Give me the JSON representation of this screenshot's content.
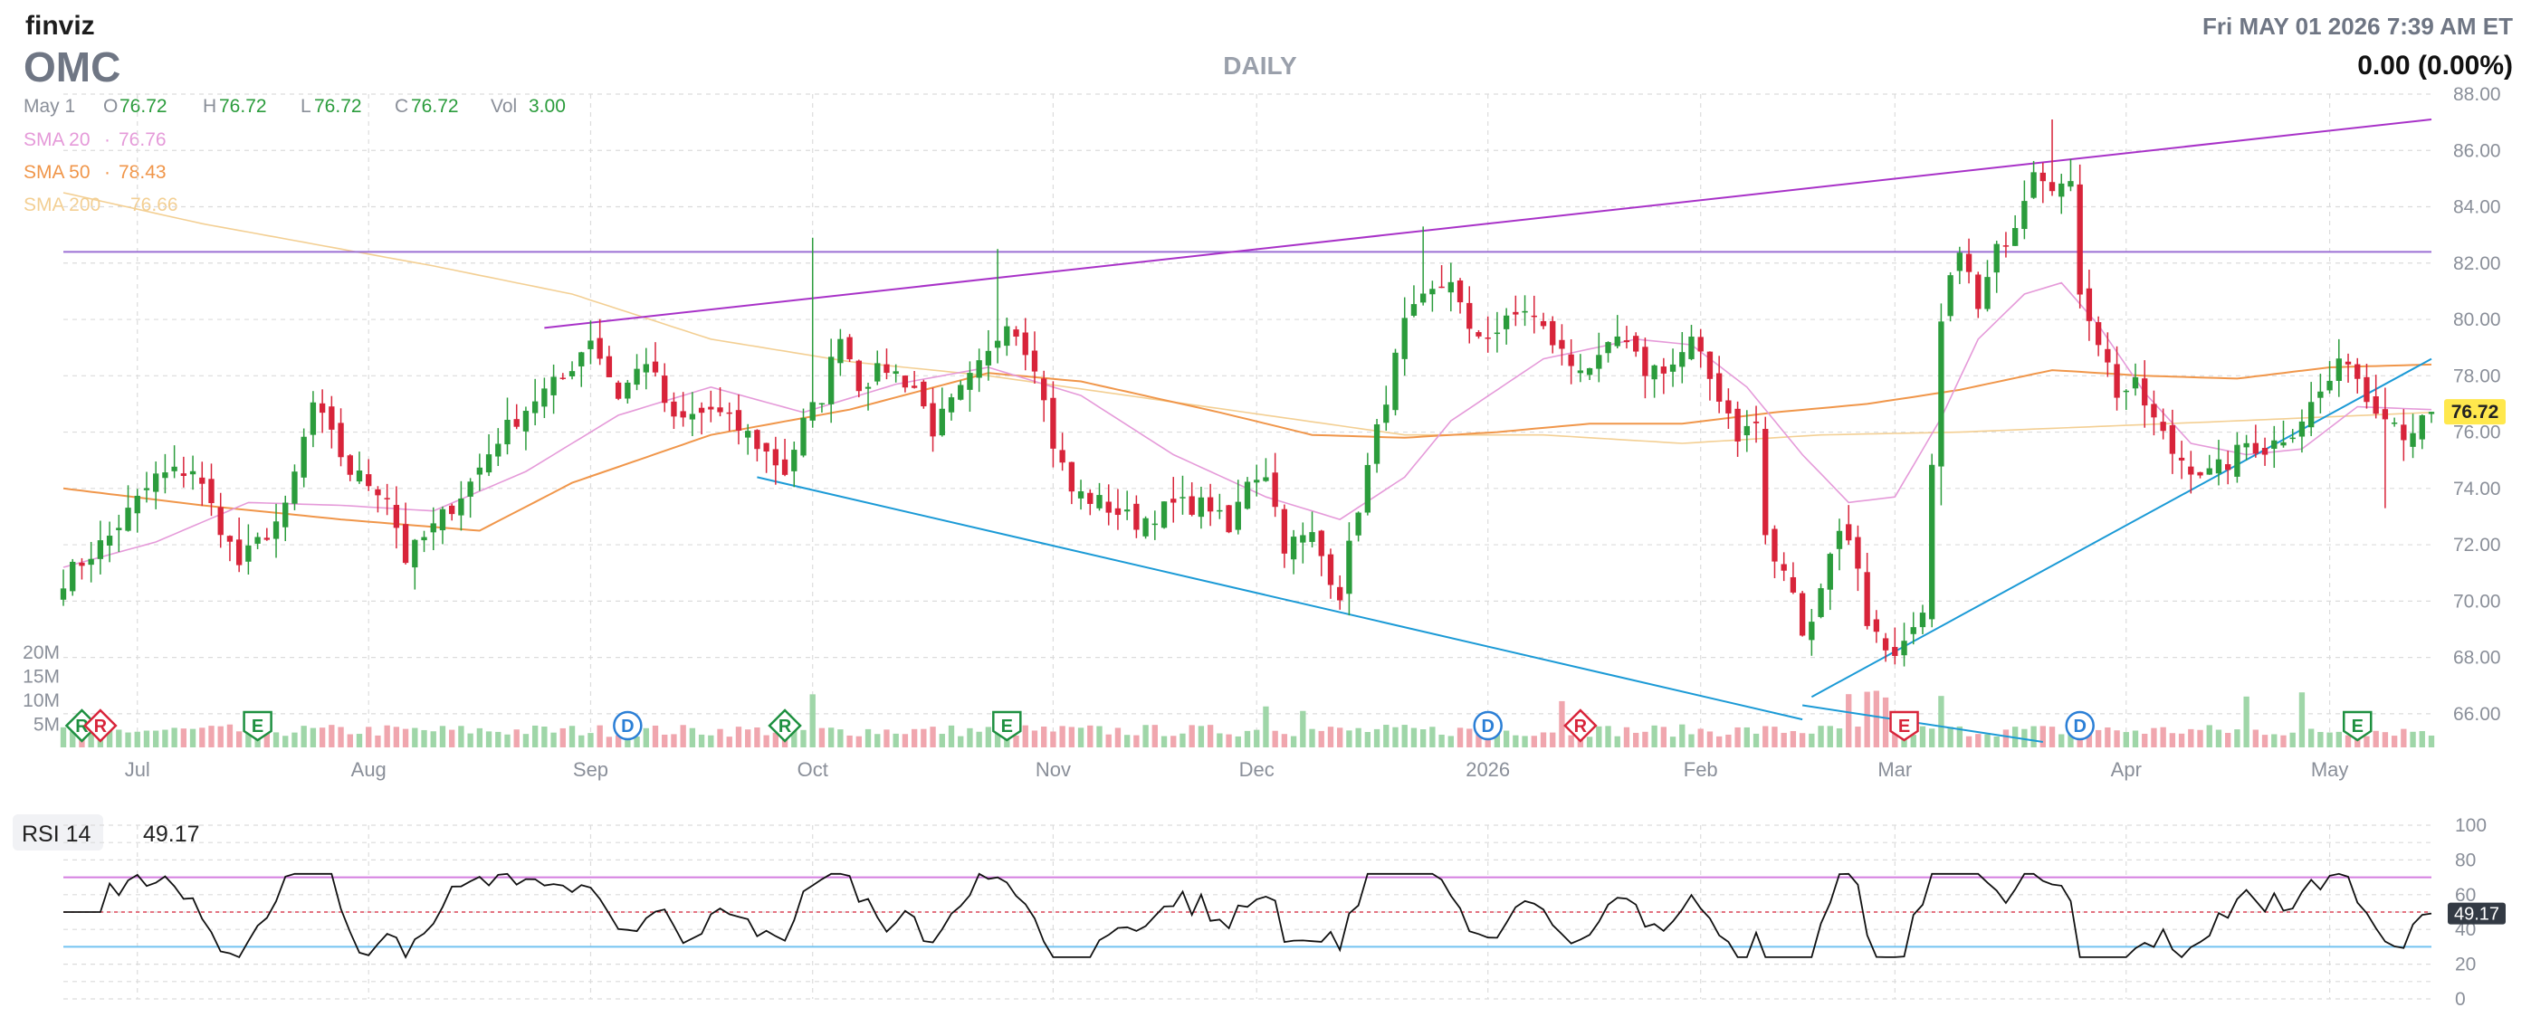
{
  "brand": "finviz",
  "ticker": "OMC",
  "timeframe": "DAILY",
  "datetime": "Fri MAY 01 2026 7:39 AM ET",
  "change": "0.00 (0.00%)",
  "ohlc": {
    "date": "May 1",
    "o_label": "O",
    "o": "76.72",
    "h_label": "H",
    "h": "76.72",
    "l_label": "L",
    "l": "76.72",
    "c_label": "C",
    "c": "76.72",
    "vol_label": "Vol",
    "vol": "3.00"
  },
  "sma": [
    {
      "label": "SMA 20",
      "sep": "·",
      "value": "76.76",
      "color": "#e59ad9"
    },
    {
      "label": "SMA 50",
      "sep": "·",
      "value": "78.43",
      "color": "#f0964a"
    },
    {
      "label": "SMA 200",
      "sep": "·",
      "value": "76.66",
      "color": "#f3cf93"
    }
  ],
  "price_tag": "76.72",
  "rsi": {
    "label": "RSI 14",
    "value": "49.17",
    "tag": "49.17",
    "ticks": [
      "100",
      "80",
      "60",
      "40",
      "20",
      "0"
    ]
  },
  "volume_ticks": [
    "20M",
    "15M",
    "10M",
    "5M"
  ],
  "markers": [
    {
      "type": "R",
      "shape": "diamond",
      "idx": 2
    },
    {
      "type": "R",
      "shape": "diamond",
      "idx": 4
    },
    {
      "type": "E",
      "shape": "pentagon",
      "idx": 21
    },
    {
      "type": "D",
      "shape": "circle",
      "idx": 61
    },
    {
      "type": "R",
      "shape": "diamond",
      "idx": 78
    },
    {
      "type": "E",
      "shape": "pentagon",
      "idx": 102
    },
    {
      "type": "D",
      "shape": "circle",
      "idx": 154
    },
    {
      "type": "R",
      "shape": "diamond",
      "idx": 164
    },
    {
      "type": "E",
      "shape": "pentagon",
      "idx": 199
    },
    {
      "type": "D",
      "shape": "circle",
      "idx": 218
    },
    {
      "type": "E",
      "shape": "pentagon",
      "idx": 248
    }
  ],
  "colors": {
    "up": "#2b9c3c",
    "down": "#d8243a",
    "vol_up": "#9fd6a8",
    "vol_down": "#f0a6ae",
    "trend_purple": "#a832c8",
    "trend_blue": "#1b9ad6",
    "rsi_high": "#d47ee0",
    "rsi_low": "#74c3f0",
    "price_tag_bg": "#ffe84d"
  },
  "chart_data": {
    "type": "candlestick",
    "bars_per_month": 21,
    "x_labels": [
      {
        "label": "Jul",
        "idx": 8
      },
      {
        "label": "Aug",
        "idx": 33
      },
      {
        "label": "Sep",
        "idx": 57
      },
      {
        "label": "Oct",
        "idx": 81
      },
      {
        "label": "Nov",
        "idx": 107
      },
      {
        "label": "Dec",
        "idx": 129
      },
      {
        "label": "2026",
        "idx": 154
      },
      {
        "label": "Feb",
        "idx": 177
      },
      {
        "label": "Mar",
        "idx": 198
      },
      {
        "label": "Apr",
        "idx": 223
      },
      {
        "label": "May",
        "idx": 245
      }
    ],
    "y_axis": {
      "min": 65,
      "max": 88,
      "ticks": [
        66,
        68,
        70,
        72,
        74,
        76,
        78,
        80,
        82,
        84,
        86,
        88
      ]
    },
    "close_path": [
      [
        0,
        70.8
      ],
      [
        5,
        72.3
      ],
      [
        10,
        74.4
      ],
      [
        14,
        74.7
      ],
      [
        19,
        71.3
      ],
      [
        24,
        73.2
      ],
      [
        27,
        77.0
      ],
      [
        31,
        74.6
      ],
      [
        35,
        73.8
      ],
      [
        37,
        71.5
      ],
      [
        40,
        72.6
      ],
      [
        44,
        74.2
      ],
      [
        47,
        75.8
      ],
      [
        51,
        77.2
      ],
      [
        54,
        77.9
      ],
      [
        57,
        79.4
      ],
      [
        60,
        77.3
      ],
      [
        63,
        78.6
      ],
      [
        66,
        76.3
      ],
      [
        70,
        76.8
      ],
      [
        74,
        75.9
      ],
      [
        78,
        74.6
      ],
      [
        80,
        76.3
      ],
      [
        82,
        77.3
      ],
      [
        84,
        79.6
      ],
      [
        86,
        77.7
      ],
      [
        89,
        78.3
      ],
      [
        92,
        77.6
      ],
      [
        94,
        76.1
      ],
      [
        97,
        77.4
      ],
      [
        100,
        78.7
      ],
      [
        102,
        80.1
      ],
      [
        105,
        78.5
      ],
      [
        107,
        75.6
      ],
      [
        109,
        73.9
      ],
      [
        112,
        73.5
      ],
      [
        116,
        72.8
      ],
      [
        120,
        73.4
      ],
      [
        124,
        73.4
      ],
      [
        126,
        72.4
      ],
      [
        128,
        74.4
      ],
      [
        130,
        74.6
      ],
      [
        132,
        72.0
      ],
      [
        135,
        72.3
      ],
      [
        137,
        70.9
      ],
      [
        138,
        70.3
      ],
      [
        140,
        73.4
      ],
      [
        143,
        77.3
      ],
      [
        145,
        79.8
      ],
      [
        147,
        80.6
      ],
      [
        150,
        81.5
      ],
      [
        152,
        79.4
      ],
      [
        155,
        79.6
      ],
      [
        158,
        80.4
      ],
      [
        160,
        79.6
      ],
      [
        163,
        78.4
      ],
      [
        166,
        78.4
      ],
      [
        168,
        79.3
      ],
      [
        171,
        78.2
      ],
      [
        174,
        78.4
      ],
      [
        176,
        79.2
      ],
      [
        178,
        77.9
      ],
      [
        180,
        76.7
      ],
      [
        181,
        75.9
      ],
      [
        183,
        76.3
      ],
      [
        184,
        72.3
      ],
      [
        185,
        71.4
      ],
      [
        187,
        70.4
      ],
      [
        188,
        68.6
      ],
      [
        190,
        70.6
      ],
      [
        192,
        72.7
      ],
      [
        194,
        71.3
      ],
      [
        195,
        69.3
      ],
      [
        197,
        68.3
      ],
      [
        199,
        68.4
      ],
      [
        201,
        69.3
      ],
      [
        203,
        79.8
      ],
      [
        205,
        82.7
      ],
      [
        207,
        80.3
      ],
      [
        209,
        82.4
      ],
      [
        211,
        83.5
      ],
      [
        213,
        85.5
      ],
      [
        215,
        84.9
      ],
      [
        217,
        84.6
      ],
      [
        218,
        81.1
      ],
      [
        220,
        79.3
      ],
      [
        222,
        77.4
      ],
      [
        224,
        77.6
      ],
      [
        226,
        76.4
      ],
      [
        228,
        75.3
      ],
      [
        230,
        74.8
      ],
      [
        232,
        74.5
      ],
      [
        234,
        74.9
      ],
      [
        236,
        75.6
      ],
      [
        238,
        75.4
      ],
      [
        241,
        76.1
      ],
      [
        244,
        77.4
      ],
      [
        247,
        78.7
      ],
      [
        249,
        77.2
      ],
      [
        251,
        76.8
      ],
      [
        253,
        76.0
      ],
      [
        255,
        76.3
      ],
      [
        256,
        76.72
      ]
    ],
    "sma_nodes": {
      "sma20": [
        [
          0,
          71.2
        ],
        [
          10,
          72.1
        ],
        [
          20,
          73.5
        ],
        [
          30,
          73.4
        ],
        [
          40,
          73.2
        ],
        [
          50,
          74.6
        ],
        [
          60,
          76.6
        ],
        [
          70,
          77.6
        ],
        [
          80,
          76.7
        ],
        [
          90,
          77.7
        ],
        [
          100,
          78.3
        ],
        [
          110,
          77.3
        ],
        [
          120,
          75.2
        ],
        [
          130,
          73.7
        ],
        [
          138,
          72.9
        ],
        [
          145,
          74.4
        ],
        [
          150,
          76.4
        ],
        [
          160,
          78.6
        ],
        [
          170,
          79.3
        ],
        [
          176,
          79.1
        ],
        [
          182,
          77.6
        ],
        [
          188,
          75.2
        ],
        [
          193,
          73.5
        ],
        [
          198,
          73.7
        ],
        [
          203,
          76.5
        ],
        [
          207,
          79.3
        ],
        [
          212,
          80.9
        ],
        [
          216,
          81.3
        ],
        [
          220,
          79.8
        ],
        [
          225,
          77.4
        ],
        [
          230,
          75.6
        ],
        [
          236,
          75.2
        ],
        [
          242,
          75.4
        ],
        [
          248,
          76.9
        ],
        [
          256,
          76.8
        ]
      ],
      "sma50": [
        [
          0,
          74.0
        ],
        [
          15,
          73.4
        ],
        [
          30,
          72.9
        ],
        [
          45,
          72.5
        ],
        [
          55,
          74.2
        ],
        [
          70,
          75.9
        ],
        [
          85,
          76.8
        ],
        [
          100,
          78.1
        ],
        [
          110,
          77.8
        ],
        [
          125,
          76.7
        ],
        [
          135,
          75.9
        ],
        [
          145,
          75.8
        ],
        [
          155,
          76.0
        ],
        [
          165,
          76.3
        ],
        [
          175,
          76.3
        ],
        [
          185,
          76.7
        ],
        [
          195,
          77.0
        ],
        [
          205,
          77.5
        ],
        [
          215,
          78.2
        ],
        [
          225,
          78.0
        ],
        [
          235,
          77.9
        ],
        [
          245,
          78.3
        ],
        [
          256,
          78.4
        ]
      ],
      "sma200": [
        [
          0,
          84.5
        ],
        [
          15,
          83.4
        ],
        [
          30,
          82.5
        ],
        [
          40,
          81.9
        ],
        [
          55,
          80.9
        ],
        [
          70,
          79.3
        ],
        [
          85,
          78.5
        ],
        [
          100,
          78.0
        ],
        [
          115,
          77.3
        ],
        [
          130,
          76.6
        ],
        [
          145,
          75.9
        ],
        [
          160,
          75.9
        ],
        [
          175,
          75.6
        ],
        [
          190,
          75.9
        ],
        [
          205,
          76.0
        ],
        [
          220,
          76.2
        ],
        [
          235,
          76.4
        ],
        [
          256,
          76.7
        ]
      ]
    },
    "hlines": [
      82.4
    ],
    "trendlines": [
      {
        "color": "purple",
        "from": [
          52,
          79.7
        ],
        "to": [
          256,
          87.1
        ]
      },
      {
        "color": "blue",
        "from": [
          75,
          74.4
        ],
        "to": [
          188,
          65.8
        ]
      },
      {
        "color": "blue",
        "from": [
          188,
          66.3
        ],
        "to": [
          214,
          65.0
        ]
      },
      {
        "color": "blue",
        "from": [
          189,
          66.6
        ],
        "to": [
          256,
          78.6
        ]
      }
    ],
    "volume_millions": {
      "max": 20,
      "ticks": [
        20,
        15,
        10,
        5
      ]
    },
    "rsi": {
      "min": 0,
      "max": 100,
      "upper": 70,
      "lower": 30,
      "mid": 50,
      "ticks": [
        0,
        20,
        40,
        60,
        80,
        100
      ],
      "last": 49.17
    }
  }
}
